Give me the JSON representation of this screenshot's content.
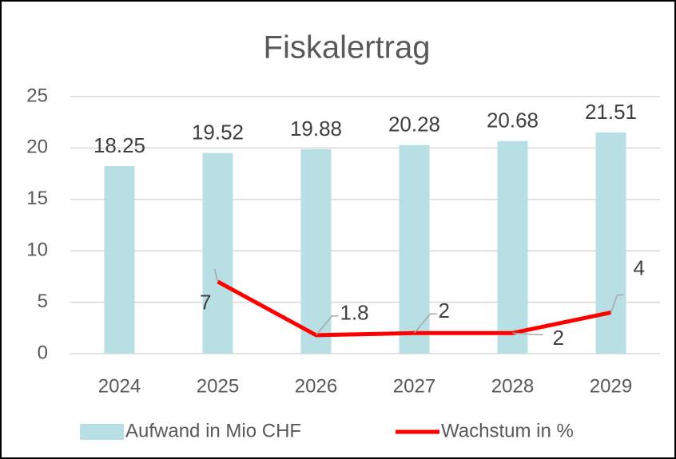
{
  "chart_data": {
    "type": "bar",
    "title": "Fiskalertrag",
    "categories": [
      "2024",
      "2025",
      "2026",
      "2027",
      "2028",
      "2029"
    ],
    "series": [
      {
        "name": "Aufwand in Mio CHF",
        "type": "bar",
        "color": "#b8dfe3",
        "values": [
          18.25,
          19.52,
          19.88,
          20.28,
          20.68,
          21.51
        ]
      },
      {
        "name": "Wachstum in %",
        "type": "line",
        "color": "#ff0000",
        "values": [
          null,
          7,
          1.8,
          2,
          2,
          4
        ]
      }
    ],
    "ylim": [
      0,
      25
    ],
    "yticks": [
      0,
      5,
      10,
      15,
      20,
      25
    ],
    "grid": true,
    "legend": "bottom"
  }
}
